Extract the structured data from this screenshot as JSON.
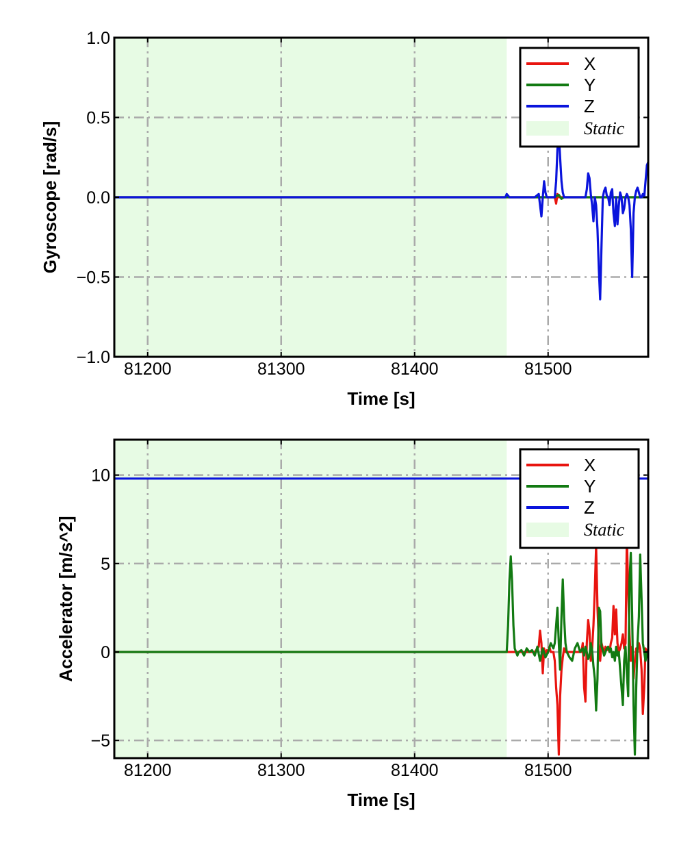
{
  "colors": {
    "X": "#e8140f",
    "Y": "#127a12",
    "Z": "#0a14dc",
    "static": "#e7fbe4"
  },
  "chart_data": [
    {
      "type": "line",
      "ylabel": "Gyroscope [rad/s]",
      "xlabel": "Time [s]",
      "xlim": [
        81175,
        81575
      ],
      "ylim": [
        -1.0,
        1.0
      ],
      "xticks": [
        81200,
        81300,
        81400,
        81500
      ],
      "xtick_labels": [
        "81200",
        "81300",
        "81400",
        "81500"
      ],
      "yticks": [
        -1.0,
        -0.5,
        0.0,
        0.5,
        1.0
      ],
      "ytick_labels": [
        "−1.0",
        "−0.5",
        "0.0",
        "0.5",
        "1.0"
      ],
      "grid": true,
      "legend_position": "top-right",
      "static_region": [
        81175,
        81469
      ],
      "legend": {
        "x": "X",
        "y": "Y",
        "z": "Z",
        "static": "Static"
      },
      "series": [
        {
          "name": "X",
          "x": [
            81175,
            81469,
            81505,
            81506,
            81507,
            81508,
            81530,
            81575
          ],
          "y": [
            0,
            0,
            0,
            -0.04,
            0.02,
            0,
            0,
            0
          ]
        },
        {
          "name": "Y",
          "x": [
            81175,
            81469,
            81505,
            81508,
            81510,
            81512,
            81530,
            81575
          ],
          "y": [
            0,
            0,
            0,
            0.015,
            -0.01,
            0,
            0,
            0
          ]
        },
        {
          "name": "Z",
          "x": [
            81175,
            81468,
            81469,
            81470,
            81471,
            81490,
            81493,
            81494,
            81495,
            81496,
            81497,
            81498,
            81499,
            81505,
            81506,
            81507,
            81508,
            81509,
            81510,
            81511,
            81512,
            81513,
            81528,
            81529,
            81530,
            81531,
            81532,
            81533,
            81534,
            81535,
            81536,
            81537,
            81538,
            81539,
            81540,
            81541,
            81542,
            81543,
            81544,
            81545,
            81546,
            81547,
            81548,
            81549,
            81550,
            81551,
            81552,
            81553,
            81554,
            81555,
            81556,
            81557,
            81558,
            81559,
            81560,
            81561,
            81562,
            81563,
            81564,
            81565,
            81566,
            81567,
            81568,
            81569,
            81570,
            81571,
            81572,
            81573,
            81574,
            81575
          ],
          "y": [
            0,
            0,
            0.02,
            0.01,
            0,
            0,
            0.02,
            -0.05,
            -0.12,
            0.0,
            0.1,
            0.03,
            0,
            0,
            0.1,
            0.3,
            0.4,
            0.25,
            0.1,
            0.03,
            0,
            0,
            0,
            0.05,
            0.15,
            0.12,
            0.02,
            -0.05,
            -0.15,
            0.0,
            -0.05,
            -0.2,
            -0.45,
            -0.64,
            -0.3,
            0.0,
            0.04,
            0.06,
            0.01,
            0,
            -0.05,
            0.03,
            0.05,
            -0.1,
            -0.18,
            0.0,
            -0.17,
            -0.05,
            0.03,
            0.0,
            -0.1,
            -0.07,
            0.0,
            0.02,
            0.0,
            -0.05,
            -0.2,
            -0.5,
            -0.1,
            0.0,
            0.04,
            0.06,
            0.03,
            0,
            0.0,
            0.02,
            0.0,
            0.1,
            0.2,
            0.22
          ]
        }
      ]
    },
    {
      "type": "line",
      "ylabel": "Accelerator [m/s^2]",
      "xlabel": "Time [s]",
      "xlim": [
        81175,
        81575
      ],
      "ylim": [
        -6,
        12
      ],
      "xticks": [
        81200,
        81300,
        81400,
        81500
      ],
      "xtick_labels": [
        "81200",
        "81300",
        "81400",
        "81500"
      ],
      "yticks": [
        -5,
        0,
        5,
        10
      ],
      "ytick_labels": [
        "−5",
        "0",
        "5",
        "10"
      ],
      "grid": true,
      "legend_position": "top-right",
      "static_region": [
        81175,
        81469
      ],
      "legend": {
        "x": "X",
        "y": "Y",
        "z": "Z",
        "static": "Static"
      },
      "series": [
        {
          "name": "X",
          "x": [
            81175,
            81469,
            81490,
            81493,
            81494,
            81495,
            81496,
            81497,
            81498,
            81499,
            81500,
            81501,
            81502,
            81504,
            81505,
            81506,
            81507,
            81508,
            81509,
            81510,
            81511,
            81512,
            81513,
            81520,
            81525,
            81526,
            81527,
            81528,
            81529,
            81530,
            81531,
            81532,
            81533,
            81534,
            81535,
            81536,
            81537,
            81538,
            81539,
            81540,
            81541,
            81542,
            81543,
            81544,
            81545,
            81546,
            81547,
            81548,
            81549,
            81550,
            81551,
            81552,
            81553,
            81554,
            81555,
            81556,
            81557,
            81558,
            81559,
            81560,
            81561,
            81562,
            81563,
            81564,
            81565,
            81566,
            81567,
            81568,
            81569,
            81570,
            81571,
            81572,
            81573,
            81574,
            81575
          ],
          "y": [
            0,
            0,
            0,
            0.3,
            1.2,
            0.5,
            -1.2,
            0.2,
            -0.3,
            0.1,
            0,
            0.3,
            0,
            0,
            -0.5,
            -2.0,
            -3.0,
            -5.8,
            -2.5,
            -1.0,
            -0.3,
            0.2,
            0,
            0,
            0,
            0.5,
            -2.0,
            -2.8,
            0.5,
            1.8,
            1.2,
            -0.5,
            0.2,
            1.5,
            3.5,
            6.0,
            2.5,
            0.5,
            -0.5,
            0.5,
            0.2,
            0.0,
            0.3,
            0.1,
            0.2,
            0,
            0.5,
            0.8,
            2.6,
            1.0,
            2.4,
            0.5,
            0,
            0.2,
            0.5,
            1.0,
            0.2,
            0.5,
            6.5,
            3.5,
            1.0,
            -0.5,
            0.3,
            -1.5,
            -0.5,
            0.2,
            0.0,
            0.5,
            0.2,
            -1.0,
            -3.5,
            -2.0,
            0.2,
            0.0,
            0.0
          ]
        },
        {
          "name": "Y",
          "x": [
            81175,
            81469,
            81470,
            81471,
            81472,
            81473,
            81474,
            81475,
            81476,
            81477,
            81478,
            81480,
            81482,
            81484,
            81486,
            81488,
            81490,
            81492,
            81494,
            81496,
            81498,
            81500,
            81502,
            81504,
            81505,
            81506,
            81507,
            81508,
            81509,
            81510,
            81511,
            81512,
            81513,
            81514,
            81516,
            81518,
            81520,
            81522,
            81524,
            81526,
            81527,
            81528,
            81529,
            81530,
            81531,
            81532,
            81533,
            81534,
            81535,
            81536,
            81537,
            81538,
            81539,
            81540,
            81541,
            81542,
            81543,
            81544,
            81545,
            81546,
            81547,
            81548,
            81549,
            81550,
            81551,
            81552,
            81553,
            81554,
            81555,
            81556,
            81557,
            81558,
            81559,
            81560,
            81561,
            81562,
            81563,
            81564,
            81565,
            81566,
            81567,
            81568,
            81569,
            81570,
            81571,
            81572,
            81573,
            81574,
            81575
          ],
          "y": [
            0,
            0,
            1.5,
            4.0,
            5.4,
            4.0,
            1.5,
            0.2,
            0,
            -0.2,
            0,
            0.1,
            -0.2,
            0.2,
            0,
            0.1,
            -0.2,
            0.3,
            -0.5,
            0.2,
            -0.3,
            0.0,
            0.5,
            0.2,
            0.5,
            1.5,
            2.5,
            0.5,
            -1.0,
            2.0,
            4.1,
            2.0,
            0.5,
            0.0,
            -0.3,
            -0.5,
            0.2,
            0.5,
            0.0,
            0.2,
            -0.2,
            0.3,
            0.0,
            -0.4,
            -0.2,
            0.5,
            0.1,
            -0.8,
            -1.5,
            -3.3,
            -1.5,
            2.5,
            2.3,
            0.3,
            0.1,
            -0.2,
            0.0,
            0.2,
            0.3,
            0.0,
            0.2,
            -0.3,
            0.0,
            -0.5,
            0.3,
            -0.2,
            0.0,
            -1.0,
            -2.0,
            -3.0,
            -0.5,
            0.3,
            -1.2,
            -2.5,
            4.0,
            5.6,
            2.0,
            -3.0,
            -5.8,
            -2.0,
            0.5,
            2.0,
            5.5,
            3.0,
            0.5,
            0.0,
            -0.5,
            0.0,
            0.0
          ]
        },
        {
          "name": "Z",
          "x": [
            81175,
            81575
          ],
          "y": [
            9.8,
            9.8
          ]
        }
      ]
    }
  ]
}
